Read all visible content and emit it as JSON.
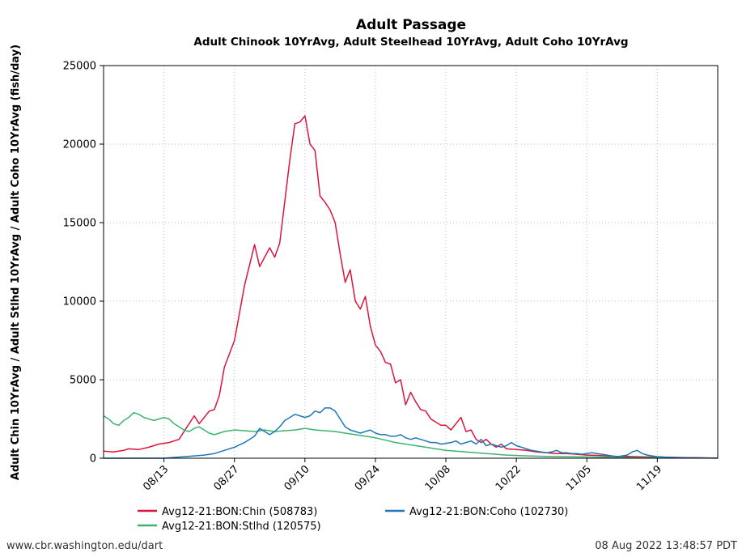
{
  "chart_data": {
    "type": "line",
    "title": "Adult Passage",
    "subtitle": "Adult Chinook 10YrAvg, Adult Steelhead 10YrAvg, Adult Coho 10YrAvg",
    "xlabel": "",
    "ylabel": "Adult Chin 10YrAvg / Adult Stlhd 10YrAvg / Adult Coho 10YrAvg (fish/day)",
    "ylim": [
      0,
      25000
    ],
    "yticks": [
      "0",
      "5000",
      "10000",
      "15000",
      "20000",
      "25000"
    ],
    "xticks": [
      {
        "label": "08/13",
        "day": 12
      },
      {
        "label": "08/27",
        "day": 26
      },
      {
        "label": "09/10",
        "day": 40
      },
      {
        "label": "09/24",
        "day": 54
      },
      {
        "label": "10/08",
        "day": 68
      },
      {
        "label": "10/22",
        "day": 82
      },
      {
        "label": "11/05",
        "day": 96
      },
      {
        "label": "11/19",
        "day": 110
      }
    ],
    "x_start": "08/01",
    "x_end": "12/01",
    "grid": true,
    "legend": "bottom",
    "series": [
      {
        "name": "Avg12-21:BON:Chin (508783)",
        "color": "#dc143c",
        "points": [
          [
            0,
            450
          ],
          [
            2,
            400
          ],
          [
            4,
            500
          ],
          [
            5,
            600
          ],
          [
            7,
            550
          ],
          [
            9,
            700
          ],
          [
            11,
            900
          ],
          [
            13,
            1000
          ],
          [
            15,
            1200
          ],
          [
            16,
            1700
          ],
          [
            18,
            2700
          ],
          [
            19,
            2200
          ],
          [
            20,
            2600
          ],
          [
            21,
            3000
          ],
          [
            22,
            3100
          ],
          [
            23,
            4000
          ],
          [
            24,
            5800
          ],
          [
            26,
            7500
          ],
          [
            28,
            11000
          ],
          [
            30,
            13600
          ],
          [
            31,
            12200
          ],
          [
            33,
            13400
          ],
          [
            34,
            12800
          ],
          [
            35,
            13700
          ],
          [
            37,
            19000
          ],
          [
            38,
            21300
          ],
          [
            39,
            21400
          ],
          [
            40,
            21800
          ],
          [
            41,
            20000
          ],
          [
            42,
            19600
          ],
          [
            43,
            16700
          ],
          [
            44,
            16300
          ],
          [
            45,
            15800
          ],
          [
            46,
            15000
          ],
          [
            47,
            13000
          ],
          [
            48,
            11200
          ],
          [
            49,
            12000
          ],
          [
            50,
            10000
          ],
          [
            51,
            9500
          ],
          [
            52,
            10300
          ],
          [
            53,
            8400
          ],
          [
            54,
            7200
          ],
          [
            55,
            6800
          ],
          [
            56,
            6100
          ],
          [
            57,
            6000
          ],
          [
            58,
            4800
          ],
          [
            59,
            5000
          ],
          [
            60,
            3400
          ],
          [
            61,
            4200
          ],
          [
            62,
            3600
          ],
          [
            63,
            3100
          ],
          [
            64,
            3000
          ],
          [
            65,
            2500
          ],
          [
            66,
            2300
          ],
          [
            67,
            2100
          ],
          [
            68,
            2100
          ],
          [
            69,
            1800
          ],
          [
            70,
            2200
          ],
          [
            71,
            2600
          ],
          [
            72,
            1700
          ],
          [
            73,
            1800
          ],
          [
            74,
            1200
          ],
          [
            75,
            1000
          ],
          [
            76,
            1200
          ],
          [
            77,
            900
          ],
          [
            78,
            700
          ],
          [
            79,
            900
          ],
          [
            80,
            600
          ],
          [
            82,
            550
          ],
          [
            84,
            500
          ],
          [
            86,
            400
          ],
          [
            88,
            350
          ],
          [
            90,
            300
          ],
          [
            92,
            300
          ],
          [
            94,
            250
          ],
          [
            96,
            200
          ],
          [
            98,
            180
          ],
          [
            100,
            150
          ],
          [
            102,
            120
          ],
          [
            104,
            120
          ],
          [
            106,
            100
          ],
          [
            108,
            80
          ],
          [
            110,
            70
          ],
          [
            112,
            60
          ],
          [
            114,
            50
          ],
          [
            116,
            40
          ],
          [
            118,
            30
          ],
          [
            120,
            20
          ],
          [
            122,
            10
          ]
        ]
      },
      {
        "name": "Avg12-21:BON:Stlhd (120575)",
        "color": "#3cb371",
        "points": [
          [
            0,
            2700
          ],
          [
            1,
            2500
          ],
          [
            2,
            2200
          ],
          [
            3,
            2100
          ],
          [
            4,
            2400
          ],
          [
            5,
            2600
          ],
          [
            6,
            2900
          ],
          [
            7,
            2800
          ],
          [
            8,
            2600
          ],
          [
            9,
            2500
          ],
          [
            10,
            2400
          ],
          [
            11,
            2500
          ],
          [
            12,
            2600
          ],
          [
            13,
            2500
          ],
          [
            14,
            2200
          ],
          [
            15,
            2000
          ],
          [
            16,
            1800
          ],
          [
            17,
            1700
          ],
          [
            18,
            1900
          ],
          [
            19,
            2000
          ],
          [
            20,
            1800
          ],
          [
            21,
            1600
          ],
          [
            22,
            1500
          ],
          [
            23,
            1600
          ],
          [
            24,
            1700
          ],
          [
            26,
            1800
          ],
          [
            28,
            1750
          ],
          [
            30,
            1700
          ],
          [
            32,
            1800
          ],
          [
            34,
            1700
          ],
          [
            36,
            1750
          ],
          [
            38,
            1800
          ],
          [
            40,
            1900
          ],
          [
            42,
            1800
          ],
          [
            44,
            1750
          ],
          [
            46,
            1700
          ],
          [
            48,
            1600
          ],
          [
            50,
            1500
          ],
          [
            52,
            1400
          ],
          [
            54,
            1300
          ],
          [
            56,
            1150
          ],
          [
            58,
            1000
          ],
          [
            60,
            900
          ],
          [
            62,
            800
          ],
          [
            64,
            700
          ],
          [
            66,
            600
          ],
          [
            68,
            500
          ],
          [
            70,
            450
          ],
          [
            72,
            400
          ],
          [
            74,
            350
          ],
          [
            76,
            300
          ],
          [
            78,
            250
          ],
          [
            80,
            200
          ],
          [
            84,
            150
          ],
          [
            88,
            120
          ],
          [
            92,
            100
          ],
          [
            96,
            80
          ],
          [
            100,
            60
          ],
          [
            104,
            40
          ],
          [
            108,
            30
          ],
          [
            112,
            20
          ],
          [
            116,
            15
          ],
          [
            120,
            10
          ],
          [
            122,
            5
          ]
        ]
      },
      {
        "name": "Avg12-21:BON:Coho (102730)",
        "color": "#1f77b4",
        "points": [
          [
            0,
            0
          ],
          [
            8,
            0
          ],
          [
            12,
            0
          ],
          [
            14,
            50
          ],
          [
            16,
            100
          ],
          [
            18,
            150
          ],
          [
            20,
            200
          ],
          [
            22,
            300
          ],
          [
            24,
            500
          ],
          [
            26,
            700
          ],
          [
            28,
            1000
          ],
          [
            30,
            1400
          ],
          [
            31,
            1900
          ],
          [
            32,
            1700
          ],
          [
            33,
            1500
          ],
          [
            34,
            1700
          ],
          [
            35,
            2000
          ],
          [
            36,
            2400
          ],
          [
            37,
            2600
          ],
          [
            38,
            2800
          ],
          [
            39,
            2700
          ],
          [
            40,
            2600
          ],
          [
            41,
            2700
          ],
          [
            42,
            3000
          ],
          [
            43,
            2900
          ],
          [
            44,
            3200
          ],
          [
            45,
            3200
          ],
          [
            46,
            3000
          ],
          [
            47,
            2500
          ],
          [
            48,
            2000
          ],
          [
            49,
            1800
          ],
          [
            50,
            1700
          ],
          [
            51,
            1600
          ],
          [
            52,
            1700
          ],
          [
            53,
            1800
          ],
          [
            54,
            1600
          ],
          [
            55,
            1500
          ],
          [
            56,
            1500
          ],
          [
            57,
            1400
          ],
          [
            58,
            1400
          ],
          [
            59,
            1500
          ],
          [
            60,
            1300
          ],
          [
            61,
            1200
          ],
          [
            62,
            1300
          ],
          [
            63,
            1200
          ],
          [
            64,
            1100
          ],
          [
            65,
            1000
          ],
          [
            66,
            1000
          ],
          [
            67,
            900
          ],
          [
            68,
            950
          ],
          [
            69,
            1000
          ],
          [
            70,
            1100
          ],
          [
            71,
            900
          ],
          [
            72,
            1000
          ],
          [
            73,
            1100
          ],
          [
            74,
            900
          ],
          [
            75,
            1200
          ],
          [
            76,
            800
          ],
          [
            77,
            900
          ],
          [
            78,
            800
          ],
          [
            79,
            700
          ],
          [
            80,
            800
          ],
          [
            81,
            1000
          ],
          [
            82,
            800
          ],
          [
            83,
            700
          ],
          [
            84,
            600
          ],
          [
            85,
            500
          ],
          [
            86,
            450
          ],
          [
            87,
            400
          ],
          [
            88,
            350
          ],
          [
            89,
            400
          ],
          [
            90,
            500
          ],
          [
            91,
            350
          ],
          [
            92,
            350
          ],
          [
            93,
            300
          ],
          [
            94,
            300
          ],
          [
            95,
            250
          ],
          [
            96,
            300
          ],
          [
            97,
            350
          ],
          [
            98,
            300
          ],
          [
            99,
            250
          ],
          [
            100,
            200
          ],
          [
            101,
            150
          ],
          [
            102,
            100
          ],
          [
            103,
            150
          ],
          [
            104,
            200
          ],
          [
            105,
            400
          ],
          [
            106,
            500
          ],
          [
            107,
            300
          ],
          [
            108,
            200
          ],
          [
            109,
            150
          ],
          [
            110,
            100
          ],
          [
            111,
            80
          ],
          [
            112,
            60
          ],
          [
            113,
            50
          ],
          [
            114,
            40
          ],
          [
            116,
            30
          ],
          [
            118,
            20
          ],
          [
            120,
            10
          ],
          [
            122,
            5
          ]
        ]
      }
    ]
  },
  "footer": {
    "source": "www.cbr.washington.edu/dart",
    "timestamp": "08 Aug 2022 13:48:57 PDT"
  }
}
